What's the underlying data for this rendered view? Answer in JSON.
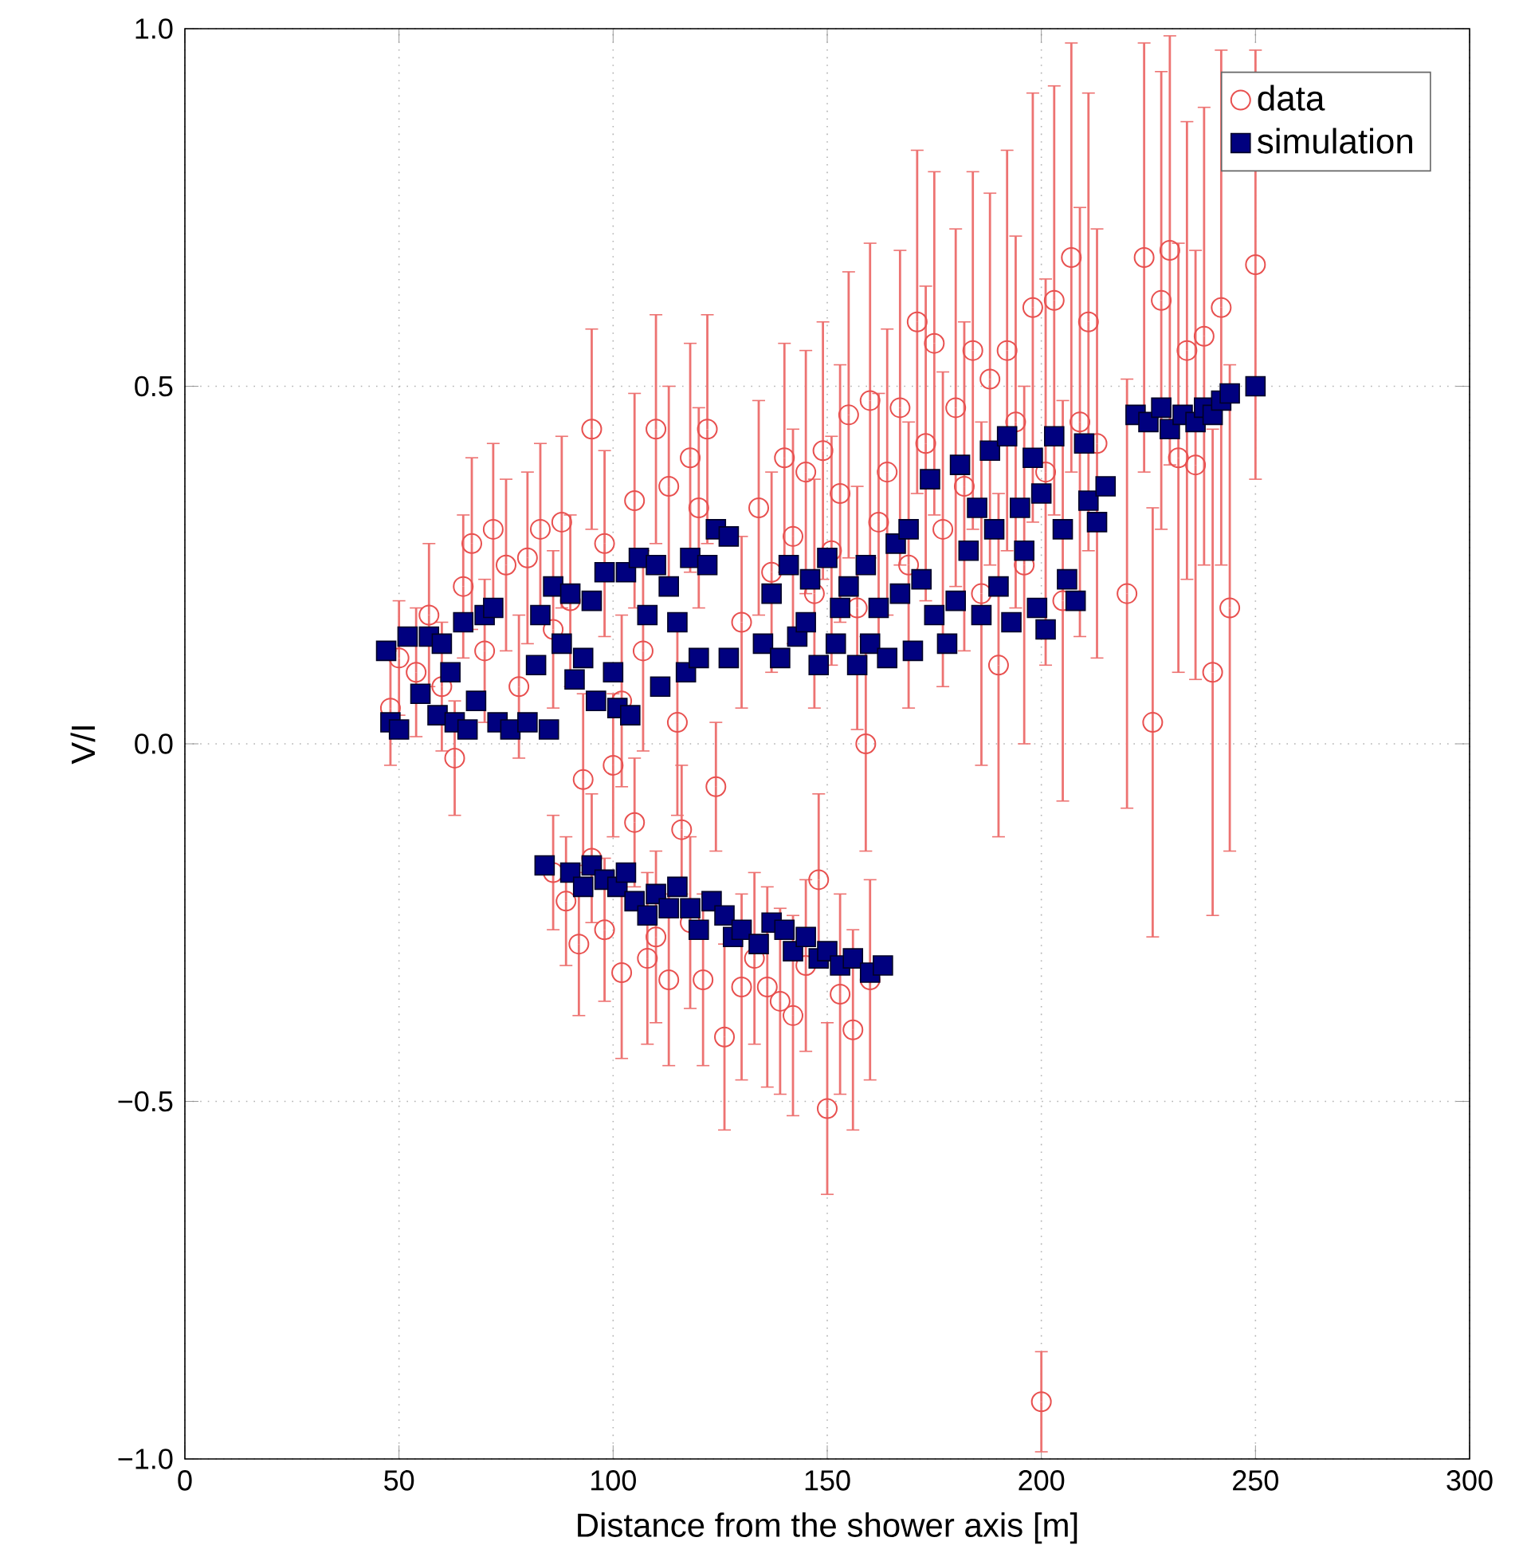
{
  "chart_data": {
    "type": "scatter",
    "xlabel": "Distance from the shower axis [m]",
    "ylabel": "V/I",
    "xlim": [
      0,
      300
    ],
    "xticks": [
      0,
      50,
      100,
      150,
      200,
      250,
      300
    ],
    "ylim": [
      -1,
      1
    ],
    "yticks": [
      {
        "value": -1,
        "label": "−1.0"
      },
      {
        "value": -0.5,
        "label": "−0.5"
      },
      {
        "value": 0,
        "label": "0.0"
      },
      {
        "value": 0.5,
        "label": "0.5"
      },
      {
        "value": 1,
        "label": "1.0"
      }
    ],
    "grid": true,
    "legend": "top right",
    "series": [
      {
        "name": "data",
        "color": "#e8504f",
        "marker": "circle",
        "x": [
          48,
          50,
          54,
          57,
          60,
          63,
          65,
          67,
          70,
          72,
          75,
          78,
          80,
          83,
          86,
          88,
          90,
          93,
          95,
          98,
          100,
          102,
          105,
          107,
          110,
          113,
          115,
          118,
          120,
          122,
          86,
          89,
          92,
          95,
          98,
          102,
          105,
          108,
          110,
          113,
          116,
          118,
          121,
          124,
          126,
          130,
          133,
          136,
          139,
          142,
          145,
          148,
          150,
          153,
          156,
          160,
          130,
          134,
          137,
          140,
          142,
          145,
          147,
          149,
          151,
          153,
          155,
          157,
          159,
          160,
          162,
          164,
          167,
          169,
          171,
          173,
          175,
          177,
          180,
          182,
          184,
          186,
          188,
          190,
          192,
          194,
          196,
          198,
          200,
          201,
          203,
          205,
          207,
          209,
          211,
          213,
          220,
          224,
          226,
          228,
          230,
          232,
          234,
          236,
          238,
          240,
          242,
          244,
          250
        ],
        "values": [
          0.05,
          0.12,
          0.1,
          0.18,
          0.08,
          -0.02,
          0.22,
          0.28,
          0.13,
          0.3,
          0.25,
          0.08,
          0.26,
          0.3,
          0.16,
          0.31,
          0.2,
          -0.05,
          0.44,
          0.28,
          -0.03,
          0.06,
          0.34,
          0.13,
          0.44,
          0.36,
          0.03,
          0.4,
          0.33,
          0.44,
          -0.18,
          -0.22,
          -0.28,
          -0.16,
          -0.26,
          -0.32,
          -0.11,
          -0.3,
          -0.27,
          -0.33,
          -0.12,
          -0.25,
          -0.33,
          -0.06,
          -0.41,
          -0.34,
          -0.3,
          -0.34,
          -0.36,
          -0.38,
          -0.31,
          -0.19,
          -0.51,
          -0.35,
          -0.4,
          -0.33,
          0.17,
          0.33,
          0.24,
          0.4,
          0.29,
          0.38,
          0.21,
          0.41,
          0.27,
          0.35,
          0.46,
          0.19,
          0.0,
          0.48,
          0.31,
          0.38,
          0.47,
          0.25,
          0.59,
          0.42,
          0.56,
          0.3,
          0.47,
          0.36,
          0.55,
          0.21,
          0.51,
          0.11,
          0.55,
          0.45,
          0.25,
          0.61,
          -0.92,
          0.38,
          0.62,
          0.2,
          0.68,
          0.45,
          0.59,
          0.42,
          0.21,
          0.68,
          0.03,
          0.62,
          0.69,
          0.4,
          0.55,
          0.39,
          0.57,
          0.1,
          0.61,
          0.19,
          0.67
        ],
        "errors": [
          0.08,
          0.08,
          0.09,
          0.1,
          0.09,
          0.08,
          0.1,
          0.12,
          0.1,
          0.12,
          0.12,
          0.1,
          0.12,
          0.12,
          0.11,
          0.12,
          0.12,
          0.12,
          0.14,
          0.13,
          0.1,
          0.12,
          0.15,
          0.14,
          0.16,
          0.14,
          0.13,
          0.16,
          0.14,
          0.16,
          0.08,
          0.09,
          0.1,
          0.09,
          0.1,
          0.12,
          0.09,
          0.12,
          0.12,
          0.12,
          0.09,
          0.12,
          0.12,
          0.09,
          0.13,
          0.13,
          0.12,
          0.14,
          0.13,
          0.14,
          0.12,
          0.12,
          0.12,
          0.14,
          0.14,
          0.14,
          0.12,
          0.15,
          0.14,
          0.16,
          0.15,
          0.17,
          0.16,
          0.18,
          0.16,
          0.18,
          0.2,
          0.17,
          0.15,
          0.22,
          0.18,
          0.2,
          0.22,
          0.2,
          0.24,
          0.22,
          0.24,
          0.22,
          0.25,
          0.23,
          0.25,
          0.24,
          0.26,
          0.24,
          0.28,
          0.26,
          0.25,
          0.3,
          0.07,
          0.27,
          0.3,
          0.28,
          0.3,
          0.3,
          0.32,
          0.3,
          0.3,
          0.3,
          0.3,
          0.32,
          0.3,
          0.3,
          0.32,
          0.3,
          0.32,
          0.34,
          0.36,
          0.34,
          0.3
        ]
      },
      {
        "name": "simulation",
        "color": "#00007f",
        "marker": "square",
        "x": [
          47,
          48,
          50,
          52,
          55,
          57,
          59,
          60,
          62,
          63,
          65,
          66,
          68,
          70,
          72,
          73,
          76,
          80,
          82,
          83,
          85,
          86,
          88,
          90,
          91,
          93,
          95,
          96,
          98,
          100,
          101,
          103,
          104,
          106,
          108,
          110,
          111,
          113,
          115,
          117,
          118,
          120,
          122,
          124,
          127,
          84,
          90,
          93,
          95,
          98,
          101,
          103,
          105,
          108,
          110,
          113,
          115,
          118,
          120,
          123,
          126,
          128,
          130,
          134,
          137,
          140,
          142,
          145,
          148,
          150,
          153,
          156,
          160,
          163,
          127,
          135,
          137,
          139,
          141,
          143,
          145,
          146,
          148,
          150,
          152,
          153,
          155,
          157,
          159,
          160,
          162,
          164,
          166,
          167,
          169,
          170,
          172,
          174,
          175,
          178,
          180,
          181,
          183,
          185,
          186,
          188,
          189,
          190,
          192,
          193,
          195,
          196,
          198,
          199,
          200,
          201,
          203,
          205,
          206,
          208,
          210,
          211,
          213,
          215,
          222,
          225,
          228,
          230,
          233,
          236,
          238,
          240,
          242,
          244,
          250
        ],
        "values": [
          0.13,
          0.03,
          0.02,
          0.15,
          0.07,
          0.15,
          0.04,
          0.14,
          0.1,
          0.03,
          0.17,
          0.02,
          0.06,
          0.18,
          0.19,
          0.03,
          0.02,
          0.03,
          0.11,
          0.18,
          0.02,
          0.22,
          0.14,
          0.21,
          0.09,
          0.12,
          0.2,
          0.06,
          0.24,
          0.1,
          0.05,
          0.24,
          0.04,
          0.26,
          0.18,
          0.25,
          0.08,
          0.22,
          0.17,
          0.1,
          0.26,
          0.12,
          0.25,
          0.3,
          0.29,
          -0.17,
          -0.18,
          -0.2,
          -0.17,
          -0.19,
          -0.2,
          -0.18,
          -0.22,
          -0.24,
          -0.21,
          -0.23,
          -0.2,
          -0.23,
          -0.26,
          -0.22,
          -0.24,
          -0.27,
          -0.26,
          -0.28,
          -0.25,
          -0.26,
          -0.29,
          -0.27,
          -0.3,
          -0.29,
          -0.31,
          -0.3,
          -0.32,
          -0.31,
          0.12,
          0.14,
          0.21,
          0.12,
          0.25,
          0.15,
          0.17,
          0.23,
          0.11,
          0.26,
          0.14,
          0.19,
          0.22,
          0.11,
          0.25,
          0.14,
          0.19,
          0.12,
          0.28,
          0.21,
          0.3,
          0.13,
          0.23,
          0.37,
          0.18,
          0.14,
          0.2,
          0.39,
          0.27,
          0.33,
          0.18,
          0.41,
          0.3,
          0.22,
          0.43,
          0.17,
          0.33,
          0.27,
          0.4,
          0.19,
          0.35,
          0.16,
          0.43,
          0.3,
          0.23,
          0.2,
          0.42,
          0.34,
          0.31,
          0.36,
          0.46,
          0.45,
          0.47,
          0.44,
          0.46,
          0.45,
          0.47,
          0.46,
          0.48,
          0.49,
          0.5
        ]
      }
    ]
  }
}
